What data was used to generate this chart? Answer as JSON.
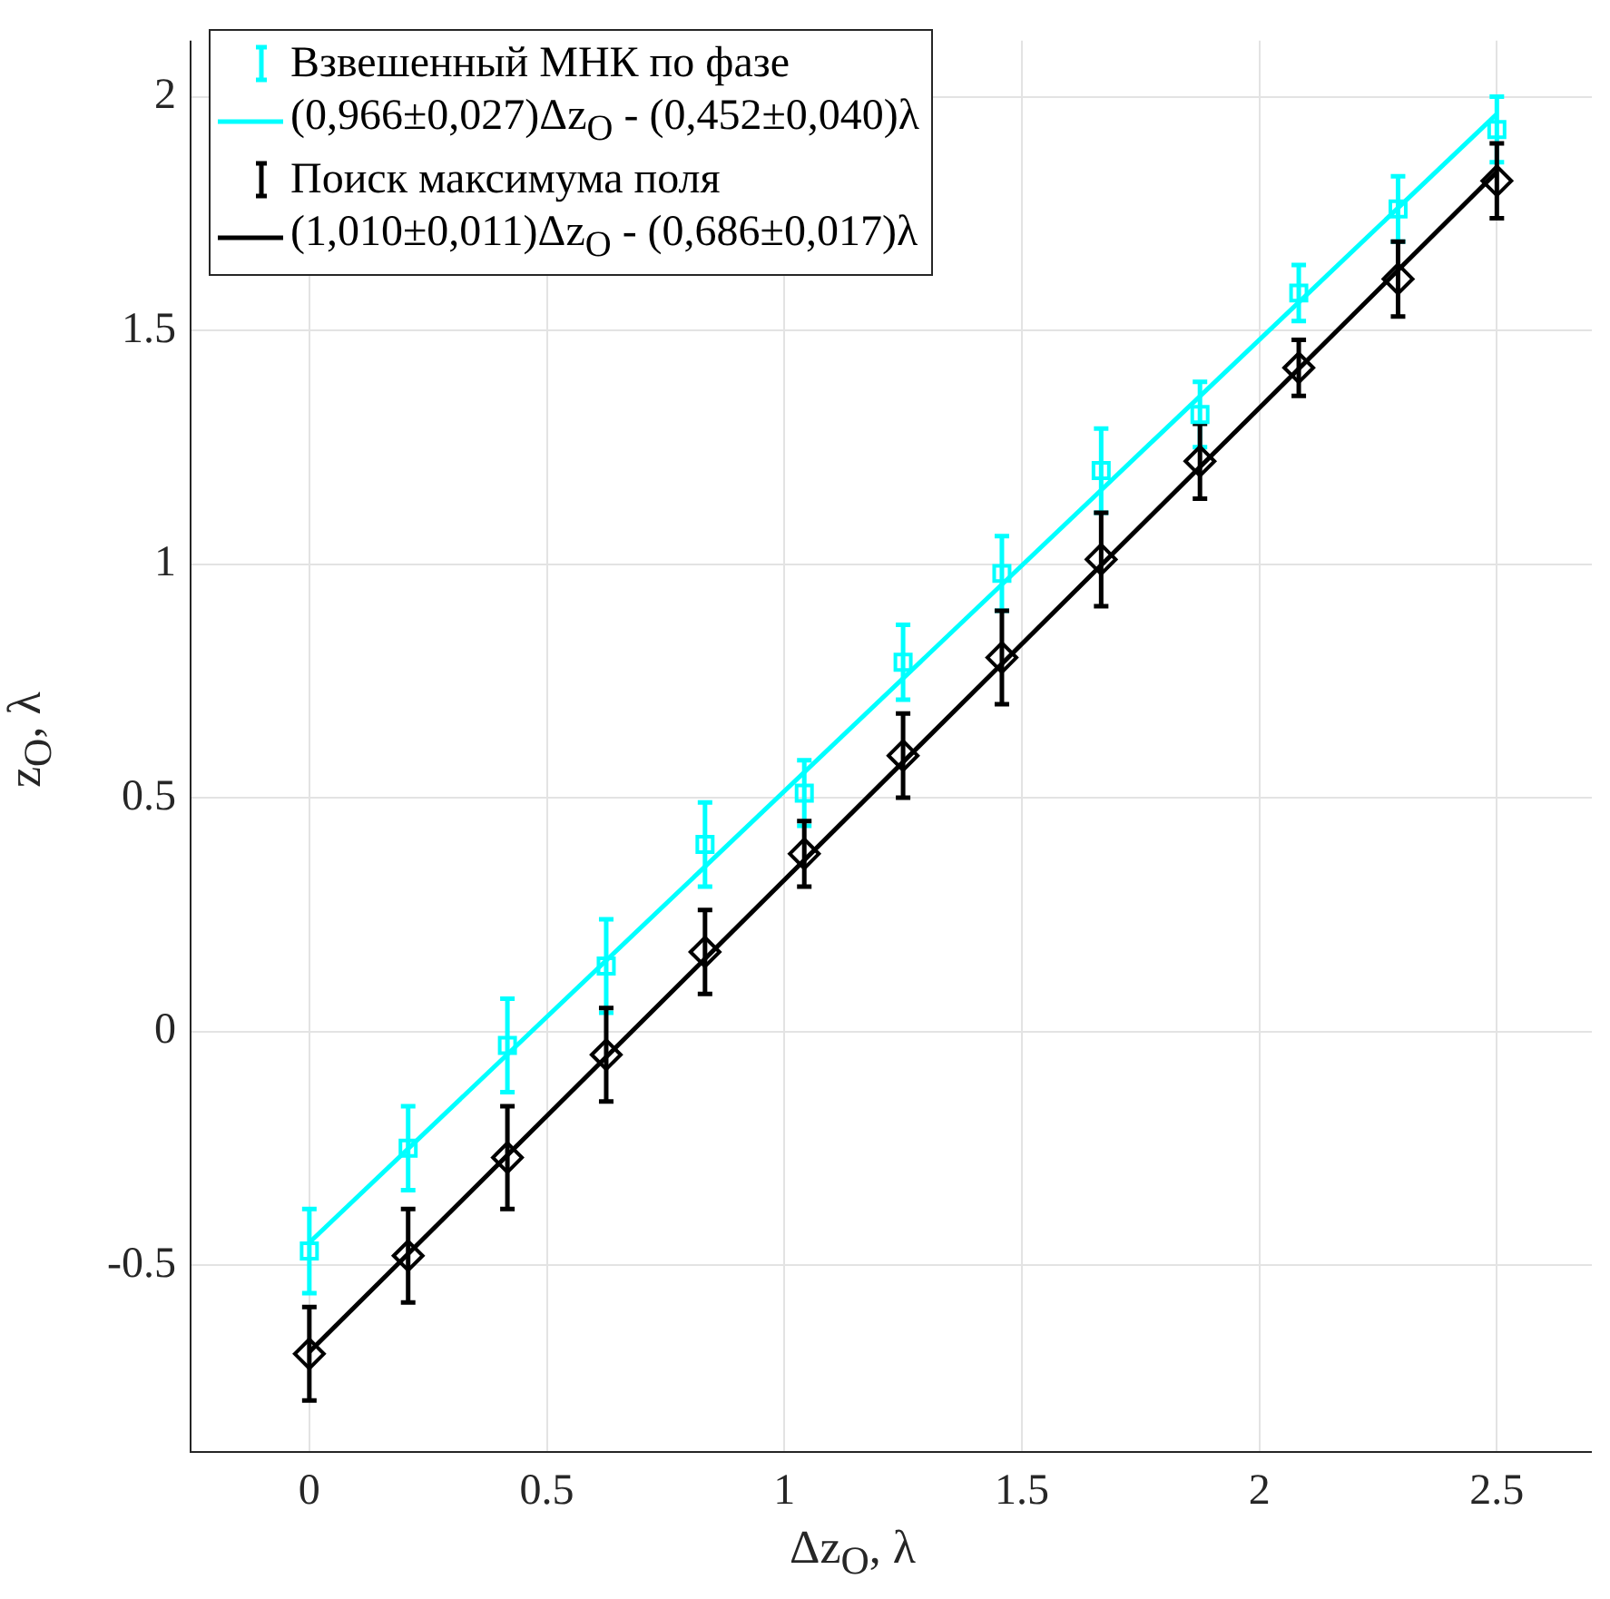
{
  "chart_data": {
    "type": "scatter",
    "xlabel": "Δz$_{O}$, λ",
    "ylabel": "z$_{O}$, λ",
    "xlim": [
      -0.25,
      2.7
    ],
    "ylim": [
      -0.9,
      2.12
    ],
    "xticks": [
      0,
      0.5,
      1,
      1.5,
      2,
      2.5
    ],
    "yticks": [
      -0.5,
      0,
      0.5,
      1,
      1.5,
      2
    ],
    "grid": true,
    "legend": "top left",
    "series": [
      {
        "name": "Взвешенный МНК по фазе",
        "type": "scatter",
        "marker": "square",
        "color": "#00ffff",
        "x": [
          0,
          0.208,
          0.417,
          0.625,
          0.833,
          1.042,
          1.25,
          1.458,
          1.667,
          1.875,
          2.083,
          2.292,
          2.5
        ],
        "values": [
          -0.47,
          -0.25,
          -0.03,
          0.14,
          0.4,
          0.51,
          0.79,
          0.98,
          1.2,
          1.32,
          1.58,
          1.76,
          1.93
        ],
        "errors": [
          0.09,
          0.09,
          0.1,
          0.1,
          0.09,
          0.07,
          0.08,
          0.08,
          0.09,
          0.07,
          0.06,
          0.07,
          0.07
        ]
      },
      {
        "name": "(0,966±0,027)Δz$_{O}$ - (0,452±0,040)λ",
        "type": "line",
        "marker": "none",
        "color": "#00ffff",
        "x": [
          0,
          2.5
        ],
        "values": [
          -0.452,
          1.963
        ]
      },
      {
        "name": "Поиск максимума поля",
        "type": "scatter",
        "marker": "diamond",
        "color": "#000000",
        "x": [
          0,
          0.208,
          0.417,
          0.625,
          0.833,
          1.042,
          1.25,
          1.458,
          1.667,
          1.875,
          2.083,
          2.292,
          2.5
        ],
        "values": [
          -0.69,
          -0.48,
          -0.27,
          -0.05,
          0.17,
          0.38,
          0.59,
          0.8,
          1.01,
          1.22,
          1.42,
          1.61,
          1.82
        ],
        "errors": [
          0.1,
          0.1,
          0.11,
          0.1,
          0.09,
          0.07,
          0.09,
          0.1,
          0.1,
          0.08,
          0.06,
          0.08,
          0.08
        ]
      },
      {
        "name": "(1,010±0,011)Δz$_{O}$ - (0,686±0,017)λ",
        "type": "line",
        "marker": "none",
        "color": "#000000",
        "x": [
          0,
          2.5
        ],
        "values": [
          -0.686,
          1.839
        ]
      }
    ]
  }
}
